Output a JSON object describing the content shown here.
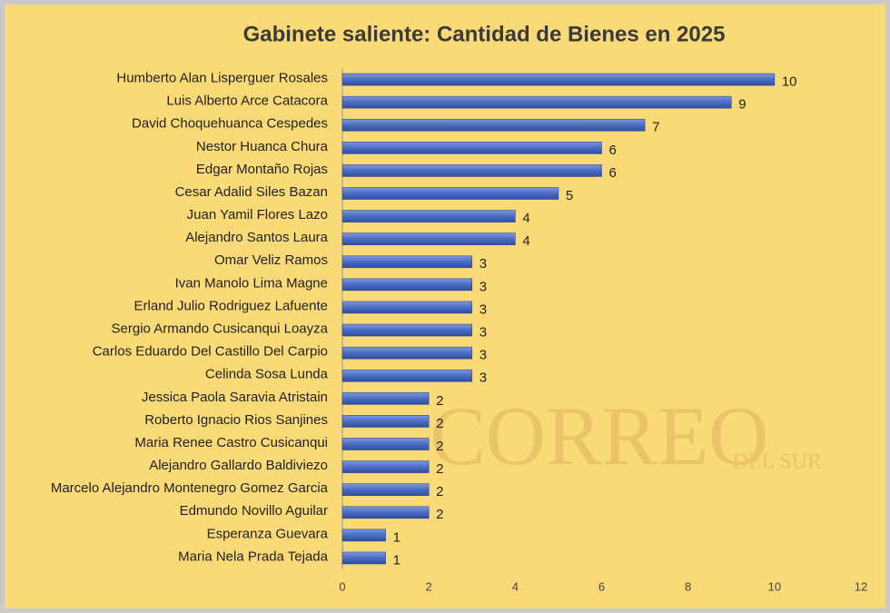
{
  "chart_data": {
    "type": "bar",
    "orientation": "horizontal",
    "title": "Gabinete saliente: Cantidad de Bienes en 2025",
    "categories": [
      "Humberto Alan Lisperguer Rosales",
      "Luis Alberto Arce Catacora",
      "David Choquehuanca Cespedes",
      "Nestor Huanca Chura",
      "Edgar Montaño Rojas",
      "Cesar Adalid Siles Bazan",
      "Juan Yamil Flores Lazo",
      "Alejandro Santos Laura",
      "Omar Veliz Ramos",
      "Ivan Manolo Lima Magne",
      "Erland Julio Rodriguez Lafuente",
      "Sergio Armando Cusicanqui Loayza",
      "Carlos Eduardo Del Castillo Del Carpio",
      "Celinda Sosa Lunda",
      "Jessica Paola Saravia Atristain",
      "Roberto Ignacio Rios Sanjines",
      "Maria Renee Castro Cusicanqui",
      "Alejandro Gallardo Baldiviezo",
      "Marcelo Alejandro Montenegro Gomez Garcia",
      "Edmundo Novillo Aguilar",
      "Esperanza Guevara",
      "Maria Nela Prada Tejada"
    ],
    "values": [
      10,
      9,
      7,
      6,
      6,
      5,
      4,
      4,
      3,
      3,
      3,
      3,
      3,
      3,
      2,
      2,
      2,
      2,
      2,
      2,
      1,
      1
    ],
    "color": "#4a6cc4",
    "xlim": [
      0,
      12
    ],
    "xticks": [
      0,
      2,
      4,
      6,
      8,
      10,
      12
    ],
    "grid": false,
    "watermark": [
      "CORREO",
      "DEL SUR"
    ]
  }
}
